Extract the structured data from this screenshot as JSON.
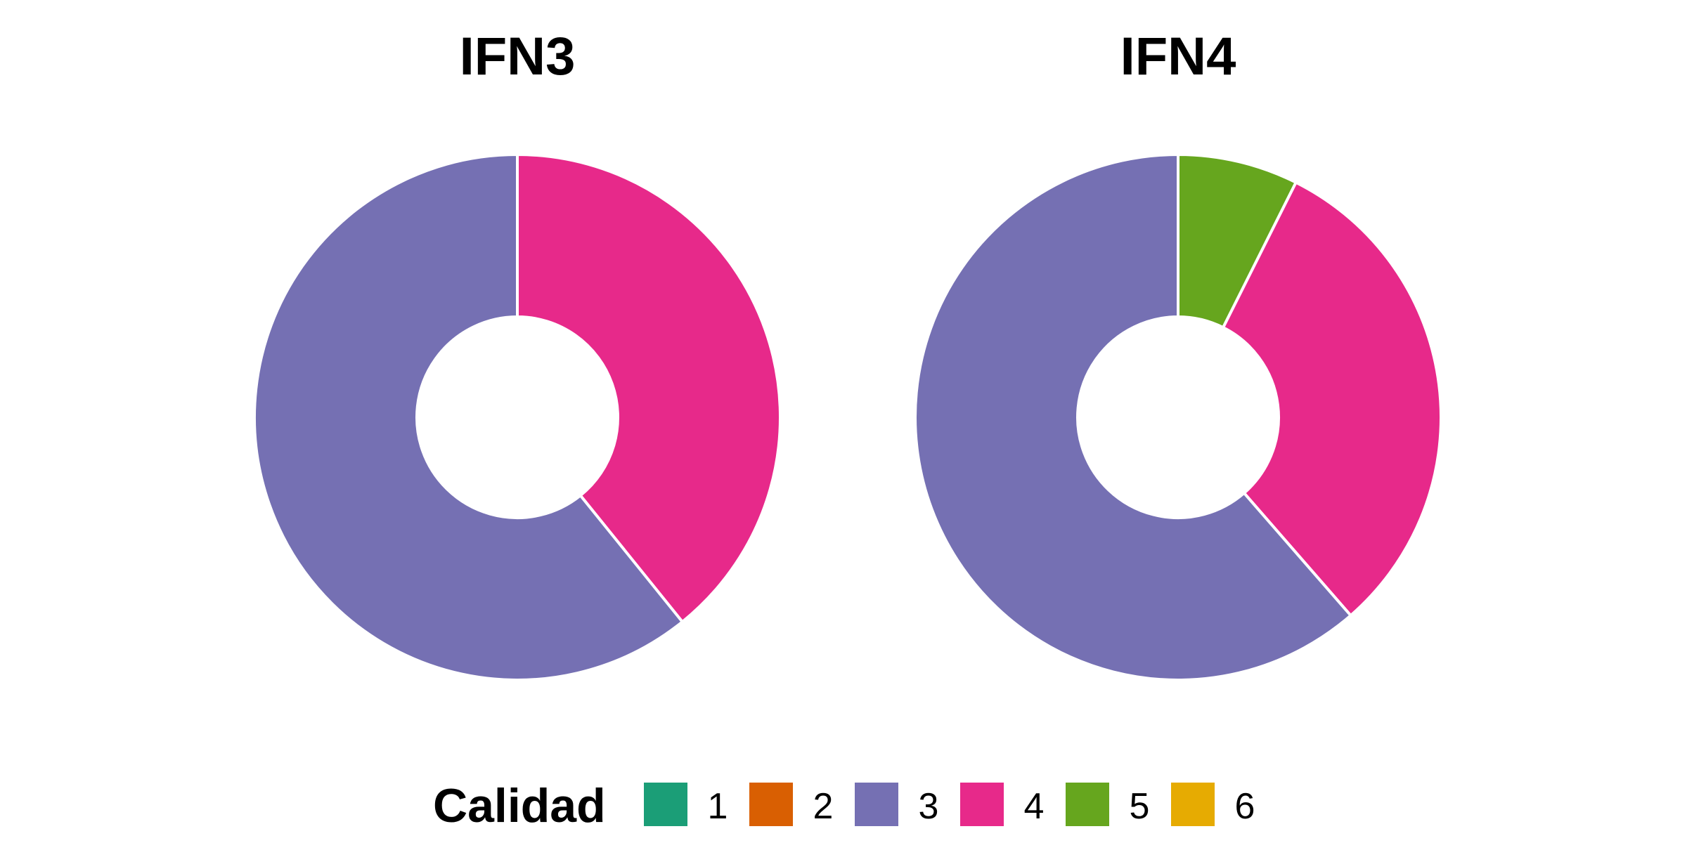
{
  "chart_data": [
    {
      "type": "donut",
      "title": "IFN3",
      "categories": [
        "1",
        "2",
        "3",
        "4",
        "5",
        "6"
      ],
      "values": [
        0,
        0,
        60.8,
        39.2,
        0,
        0
      ]
    },
    {
      "type": "donut",
      "title": "IFN4",
      "categories": [
        "1",
        "2",
        "3",
        "4",
        "5",
        "6"
      ],
      "values": [
        0,
        0,
        61.4,
        31.2,
        7.4,
        0
      ]
    }
  ],
  "legend": {
    "title": "Calidad",
    "placement": "bottom",
    "items": [
      {
        "label": "1",
        "color": "#1B9E77"
      },
      {
        "label": "2",
        "color": "#D95F02"
      },
      {
        "label": "3",
        "color": "#7570B3"
      },
      {
        "label": "4",
        "color": "#E7298A"
      },
      {
        "label": "5",
        "color": "#66A61E"
      },
      {
        "label": "6",
        "color": "#E6AB02"
      }
    ]
  }
}
